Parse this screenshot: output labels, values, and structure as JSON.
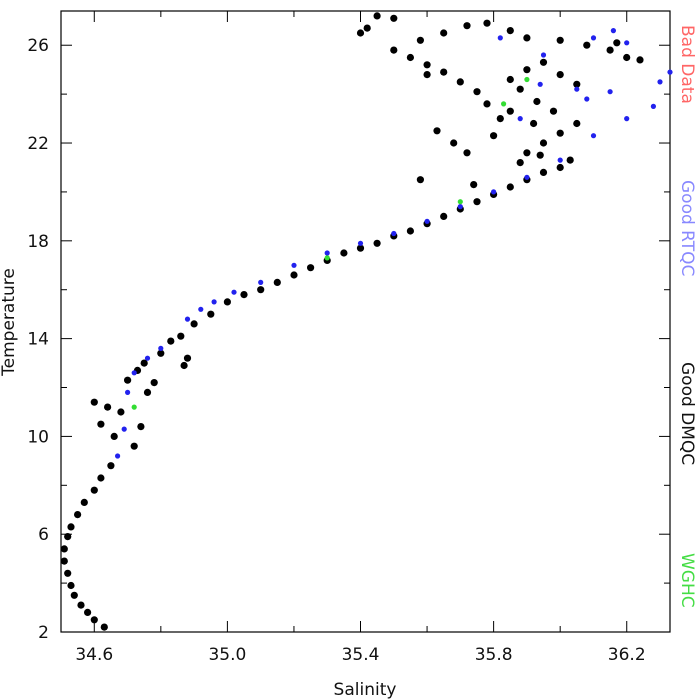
{
  "chart_data": {
    "type": "scatter",
    "title": "",
    "xlabel": "Salinity",
    "ylabel": "Temperature",
    "xlim": [
      34.5,
      36.33
    ],
    "ylim": [
      2,
      27.4
    ],
    "x_ticks": [
      34.6,
      35.0,
      35.4,
      35.8,
      36.2
    ],
    "x_tick_labels": [
      "34.6",
      "35.0",
      "35.4",
      "35.8",
      "36.2"
    ],
    "y_ticks": [
      2,
      6,
      10,
      14,
      18,
      22,
      26
    ],
    "y_tick_labels": [
      "2",
      "6",
      "10",
      "14",
      "18",
      "22",
      "26"
    ],
    "grid": false,
    "legend_placement": "right side, vertical",
    "series": [
      {
        "name": "Bad Data",
        "color": "#ff6666",
        "points": []
      },
      {
        "name": "Good RTQC",
        "color": "#2222ee",
        "points": [
          [
            34.67,
            9.2
          ],
          [
            34.69,
            10.3
          ],
          [
            34.7,
            11.8
          ],
          [
            34.72,
            12.6
          ],
          [
            34.76,
            13.2
          ],
          [
            34.8,
            13.6
          ],
          [
            34.88,
            14.8
          ],
          [
            34.92,
            15.2
          ],
          [
            34.96,
            15.5
          ],
          [
            35.02,
            15.9
          ],
          [
            35.1,
            16.3
          ],
          [
            35.2,
            17.0
          ],
          [
            35.3,
            17.5
          ],
          [
            35.4,
            17.9
          ],
          [
            35.5,
            18.3
          ],
          [
            35.6,
            18.8
          ],
          [
            35.7,
            19.4
          ],
          [
            35.8,
            20.0
          ],
          [
            35.9,
            20.6
          ],
          [
            36.0,
            21.3
          ],
          [
            36.1,
            22.3
          ],
          [
            36.2,
            23.0
          ],
          [
            36.28,
            23.5
          ],
          [
            36.3,
            24.5
          ],
          [
            36.33,
            24.9
          ],
          [
            36.15,
            24.1
          ],
          [
            36.05,
            24.2
          ],
          [
            35.95,
            25.6
          ],
          [
            36.1,
            26.3
          ],
          [
            36.16,
            26.6
          ],
          [
            35.82,
            26.3
          ],
          [
            36.2,
            26.1
          ],
          [
            35.94,
            24.4
          ],
          [
            36.08,
            23.8
          ],
          [
            35.88,
            23.0
          ]
        ]
      },
      {
        "name": "Good DMQC",
        "color": "#000000",
        "points": [
          [
            34.63,
            2.2
          ],
          [
            34.6,
            2.5
          ],
          [
            34.58,
            2.8
          ],
          [
            34.56,
            3.1
          ],
          [
            34.54,
            3.5
          ],
          [
            34.53,
            3.9
          ],
          [
            34.52,
            4.4
          ],
          [
            34.51,
            4.9
          ],
          [
            34.51,
            5.4
          ],
          [
            34.52,
            5.9
          ],
          [
            34.53,
            6.3
          ],
          [
            34.55,
            6.8
          ],
          [
            34.57,
            7.3
          ],
          [
            34.6,
            7.8
          ],
          [
            34.62,
            8.3
          ],
          [
            34.65,
            8.8
          ],
          [
            34.62,
            10.5
          ],
          [
            34.6,
            11.4
          ],
          [
            34.64,
            11.2
          ],
          [
            34.66,
            10.0
          ],
          [
            34.68,
            11.0
          ],
          [
            34.7,
            12.3
          ],
          [
            34.73,
            12.7
          ],
          [
            34.75,
            13.0
          ],
          [
            34.72,
            9.6
          ],
          [
            34.74,
            10.4
          ],
          [
            34.76,
            11.8
          ],
          [
            34.78,
            12.2
          ],
          [
            34.8,
            13.4
          ],
          [
            34.83,
            13.9
          ],
          [
            34.86,
            14.1
          ],
          [
            34.87,
            12.9
          ],
          [
            34.88,
            13.2
          ],
          [
            34.9,
            14.6
          ],
          [
            34.95,
            15.0
          ],
          [
            35.0,
            15.5
          ],
          [
            35.05,
            15.8
          ],
          [
            35.1,
            16.0
          ],
          [
            35.15,
            16.3
          ],
          [
            35.2,
            16.6
          ],
          [
            35.25,
            16.9
          ],
          [
            35.3,
            17.2
          ],
          [
            35.35,
            17.5
          ],
          [
            35.4,
            17.7
          ],
          [
            35.45,
            17.9
          ],
          [
            35.5,
            18.2
          ],
          [
            35.55,
            18.4
          ],
          [
            35.6,
            18.7
          ],
          [
            35.65,
            19.0
          ],
          [
            35.7,
            19.3
          ],
          [
            35.75,
            19.6
          ],
          [
            35.8,
            19.9
          ],
          [
            35.85,
            20.2
          ],
          [
            35.9,
            20.5
          ],
          [
            35.95,
            20.8
          ],
          [
            36.0,
            21.0
          ],
          [
            36.03,
            21.3
          ],
          [
            35.9,
            21.6
          ],
          [
            35.95,
            22.0
          ],
          [
            36.0,
            22.4
          ],
          [
            36.05,
            22.8
          ],
          [
            35.98,
            23.3
          ],
          [
            35.93,
            23.7
          ],
          [
            35.88,
            24.2
          ],
          [
            35.85,
            24.6
          ],
          [
            35.9,
            25.0
          ],
          [
            35.95,
            25.3
          ],
          [
            36.0,
            24.8
          ],
          [
            36.05,
            24.4
          ],
          [
            35.82,
            23.0
          ],
          [
            35.78,
            23.6
          ],
          [
            35.75,
            24.1
          ],
          [
            35.7,
            24.5
          ],
          [
            35.65,
            24.9
          ],
          [
            35.6,
            25.2
          ],
          [
            35.55,
            25.5
          ],
          [
            35.5,
            25.8
          ],
          [
            35.58,
            26.2
          ],
          [
            35.65,
            26.5
          ],
          [
            35.72,
            26.8
          ],
          [
            35.78,
            26.9
          ],
          [
            35.85,
            26.6
          ],
          [
            35.9,
            26.3
          ],
          [
            36.0,
            26.2
          ],
          [
            36.08,
            26.0
          ],
          [
            36.15,
            25.8
          ],
          [
            36.2,
            25.5
          ],
          [
            36.24,
            25.4
          ],
          [
            36.17,
            26.1
          ],
          [
            35.45,
            27.2
          ],
          [
            35.5,
            27.1
          ],
          [
            35.42,
            26.7
          ],
          [
            35.4,
            26.5
          ],
          [
            35.6,
            24.8
          ],
          [
            35.63,
            22.5
          ],
          [
            35.68,
            22.0
          ],
          [
            35.72,
            21.6
          ],
          [
            35.58,
            20.5
          ],
          [
            35.74,
            20.3
          ],
          [
            35.88,
            21.2
          ],
          [
            35.94,
            21.5
          ],
          [
            35.8,
            22.3
          ],
          [
            35.85,
            23.3
          ],
          [
            35.92,
            22.8
          ]
        ]
      },
      {
        "name": "WGHC",
        "color": "#33dd33",
        "points": [
          [
            34.72,
            11.2
          ],
          [
            35.3,
            17.3
          ],
          [
            35.7,
            19.6
          ],
          [
            35.83,
            23.6
          ],
          [
            35.9,
            24.6
          ]
        ]
      }
    ]
  },
  "legend": {
    "bad_data": {
      "label": "Bad Data",
      "color": "#ff6666"
    },
    "good_rtqc": {
      "label": "Good RTQC",
      "color": "#8888ff"
    },
    "good_dmqc": {
      "label": "Good DMQC",
      "color": "#111111"
    },
    "wghc": {
      "label": "WGHC",
      "color": "#44dd44"
    }
  }
}
